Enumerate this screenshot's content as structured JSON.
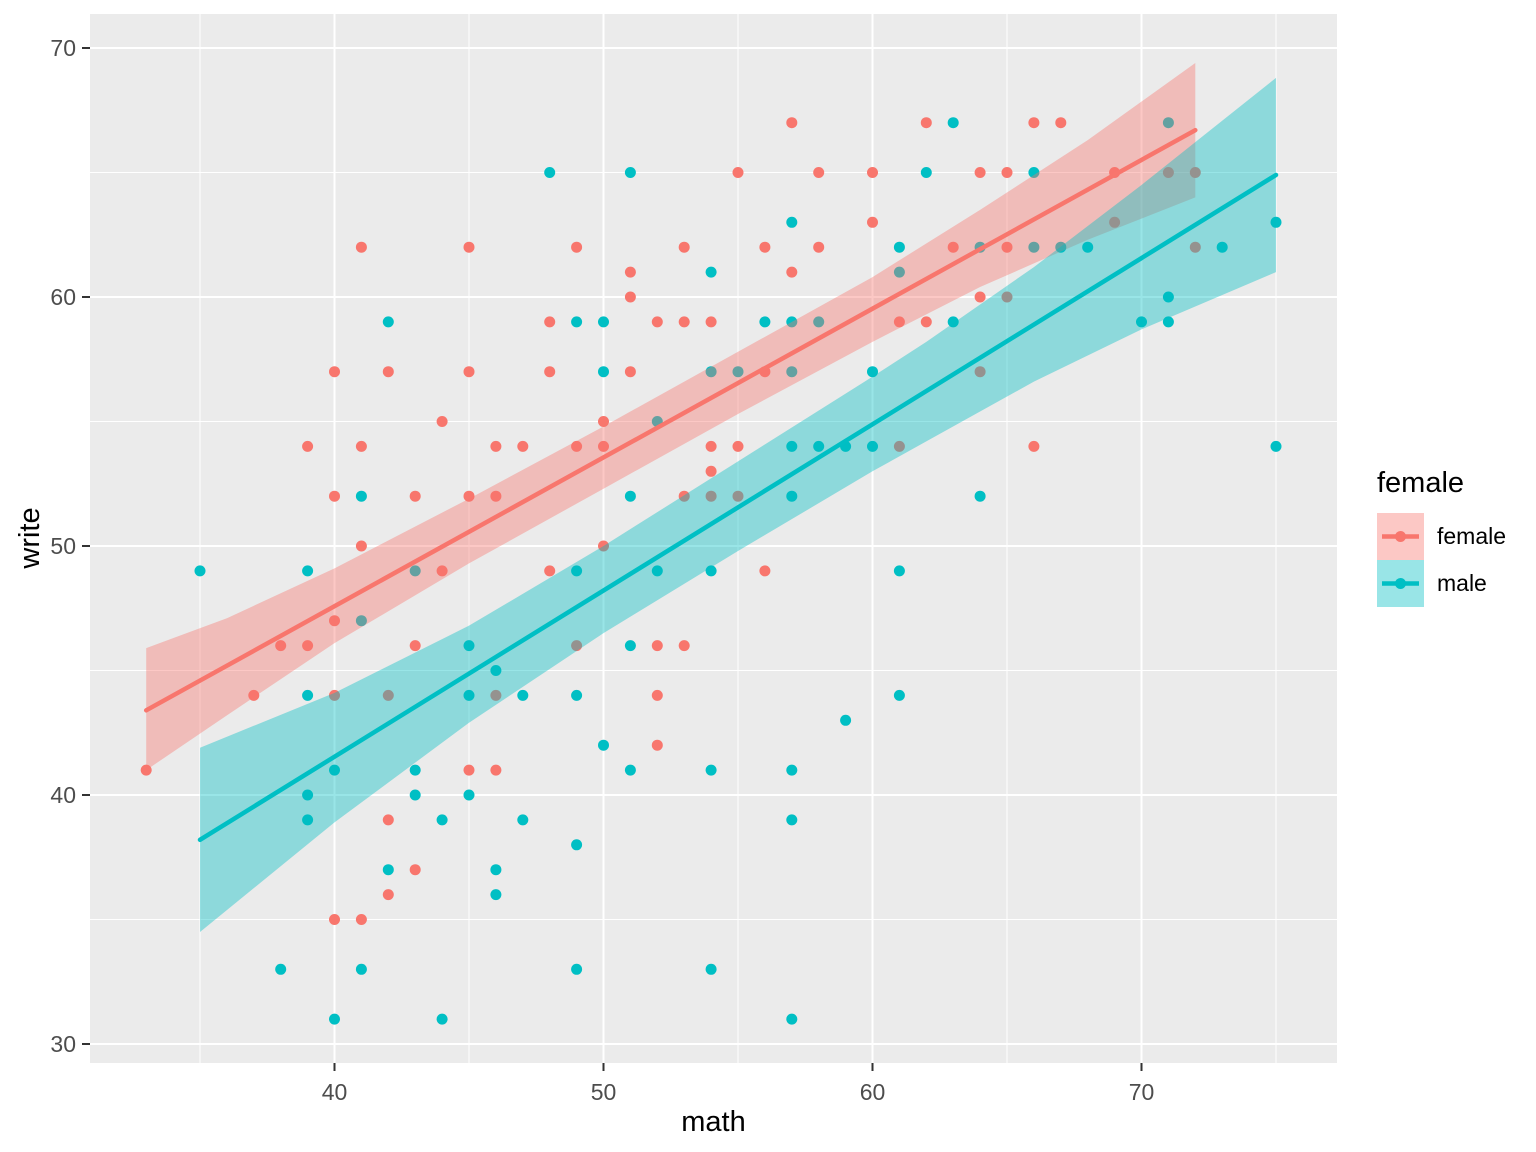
{
  "chart_data": {
    "type": "scatter",
    "title": "",
    "xlabel": "math",
    "ylabel": "write",
    "xlim": [
      30.9,
      77.2
    ],
    "ylim": [
      29.2,
      71.3
    ],
    "x_major_ticks": [
      40,
      50,
      60,
      70
    ],
    "x_minor_gridlines": [
      35,
      45,
      55,
      65,
      75
    ],
    "y_major_ticks": [
      30,
      40,
      50,
      60,
      70
    ],
    "y_minor_gridlines": [
      35,
      45,
      55,
      65
    ],
    "grid": "on",
    "panel_background": "#EBEBEB",
    "gridline_color": "#FFFFFF",
    "tick_label_color": "#4D4D4D",
    "legend": {
      "title": "female",
      "position": "right",
      "entries": [
        {
          "label": "female",
          "color": "#F8766D"
        },
        {
          "label": "male",
          "color": "#00BFC4"
        }
      ]
    },
    "series": [
      {
        "name": "female",
        "color": "#F8766D",
        "marker": "circle",
        "points": [
          [
            33,
            41
          ],
          [
            37,
            44
          ],
          [
            38,
            46
          ],
          [
            39,
            46
          ],
          [
            39,
            54
          ],
          [
            40,
            35
          ],
          [
            40,
            44
          ],
          [
            40,
            47
          ],
          [
            40,
            52
          ],
          [
            40,
            57
          ],
          [
            41,
            35
          ],
          [
            41,
            50
          ],
          [
            41,
            54
          ],
          [
            41,
            62
          ],
          [
            42,
            36
          ],
          [
            42,
            39
          ],
          [
            42,
            44
          ],
          [
            42,
            57
          ],
          [
            43,
            37
          ],
          [
            43,
            46
          ],
          [
            43,
            52
          ],
          [
            44,
            49
          ],
          [
            44,
            55
          ],
          [
            45,
            41
          ],
          [
            45,
            52
          ],
          [
            45,
            57
          ],
          [
            45,
            62
          ],
          [
            46,
            41
          ],
          [
            46,
            44
          ],
          [
            46,
            52
          ],
          [
            46,
            54
          ],
          [
            47,
            54
          ],
          [
            48,
            49
          ],
          [
            48,
            57
          ],
          [
            48,
            59
          ],
          [
            49,
            46
          ],
          [
            49,
            54
          ],
          [
            49,
            62
          ],
          [
            50,
            50
          ],
          [
            50,
            54
          ],
          [
            50,
            55
          ],
          [
            51,
            57
          ],
          [
            51,
            60
          ],
          [
            51,
            61
          ],
          [
            52,
            42
          ],
          [
            52,
            44
          ],
          [
            52,
            46
          ],
          [
            52,
            59
          ],
          [
            53,
            46
          ],
          [
            53,
            52
          ],
          [
            53,
            59
          ],
          [
            53,
            62
          ],
          [
            54,
            52
          ],
          [
            54,
            53
          ],
          [
            54,
            54
          ],
          [
            54,
            59
          ],
          [
            55,
            52
          ],
          [
            55,
            54
          ],
          [
            55,
            65
          ],
          [
            56,
            49
          ],
          [
            56,
            57
          ],
          [
            56,
            62
          ],
          [
            57,
            61
          ],
          [
            57,
            67
          ],
          [
            58,
            62
          ],
          [
            58,
            65
          ],
          [
            60,
            63
          ],
          [
            60,
            65
          ],
          [
            61,
            54
          ],
          [
            61,
            59
          ],
          [
            62,
            59
          ],
          [
            62,
            67
          ],
          [
            63,
            62
          ],
          [
            64,
            57
          ],
          [
            64,
            60
          ],
          [
            64,
            65
          ],
          [
            65,
            60
          ],
          [
            65,
            62
          ],
          [
            65,
            65
          ],
          [
            66,
            54
          ],
          [
            66,
            67
          ],
          [
            67,
            67
          ],
          [
            69,
            63
          ],
          [
            69,
            65
          ],
          [
            71,
            65
          ],
          [
            72,
            62
          ],
          [
            72,
            65
          ]
        ],
        "regression_line": {
          "x": [
            33,
            72
          ],
          "y": [
            43.4,
            66.7
          ]
        },
        "ribbon": {
          "x": [
            33,
            36,
            40,
            45,
            50,
            55,
            60,
            64,
            68,
            72
          ],
          "upper": [
            45.9,
            47.1,
            49.1,
            51.9,
            54.8,
            57.8,
            60.8,
            63.5,
            66.3,
            69.4
          ],
          "lower": [
            41.0,
            43.2,
            46.1,
            49.3,
            52.3,
            55.3,
            58.2,
            60.4,
            62.3,
            64.0
          ]
        }
      },
      {
        "name": "male",
        "color": "#00BFC4",
        "marker": "circle",
        "points": [
          [
            35,
            49
          ],
          [
            38,
            33
          ],
          [
            39,
            39
          ],
          [
            39,
            40
          ],
          [
            39,
            44
          ],
          [
            39,
            49
          ],
          [
            40,
            31
          ],
          [
            40,
            41
          ],
          [
            41,
            33
          ],
          [
            41,
            47
          ],
          [
            41,
            52
          ],
          [
            42,
            37
          ],
          [
            42,
            59
          ],
          [
            43,
            40
          ],
          [
            43,
            41
          ],
          [
            43,
            49
          ],
          [
            44,
            31
          ],
          [
            44,
            39
          ],
          [
            45,
            40
          ],
          [
            45,
            44
          ],
          [
            45,
            46
          ],
          [
            46,
            36
          ],
          [
            46,
            37
          ],
          [
            46,
            45
          ],
          [
            47,
            39
          ],
          [
            47,
            44
          ],
          [
            48,
            65
          ],
          [
            49,
            33
          ],
          [
            49,
            38
          ],
          [
            49,
            44
          ],
          [
            49,
            49
          ],
          [
            49,
            59
          ],
          [
            50,
            42
          ],
          [
            50,
            57
          ],
          [
            50,
            59
          ],
          [
            51,
            41
          ],
          [
            51,
            46
          ],
          [
            51,
            52
          ],
          [
            51,
            65
          ],
          [
            52,
            49
          ],
          [
            52,
            55
          ],
          [
            54,
            33
          ],
          [
            54,
            41
          ],
          [
            54,
            49
          ],
          [
            54,
            57
          ],
          [
            54,
            61
          ],
          [
            55,
            57
          ],
          [
            56,
            59
          ],
          [
            57,
            31
          ],
          [
            57,
            39
          ],
          [
            57,
            41
          ],
          [
            57,
            52
          ],
          [
            57,
            54
          ],
          [
            57,
            57
          ],
          [
            57,
            59
          ],
          [
            57,
            63
          ],
          [
            58,
            54
          ],
          [
            58,
            59
          ],
          [
            59,
            43
          ],
          [
            59,
            54
          ],
          [
            60,
            54
          ],
          [
            60,
            57
          ],
          [
            61,
            44
          ],
          [
            61,
            49
          ],
          [
            61,
            61
          ],
          [
            61,
            62
          ],
          [
            62,
            65
          ],
          [
            63,
            59
          ],
          [
            63,
            67
          ],
          [
            64,
            52
          ],
          [
            64,
            62
          ],
          [
            66,
            62
          ],
          [
            66,
            65
          ],
          [
            67,
            62
          ],
          [
            68,
            62
          ],
          [
            70,
            59
          ],
          [
            71,
            59
          ],
          [
            71,
            60
          ],
          [
            71,
            67
          ],
          [
            73,
            62
          ],
          [
            75,
            54
          ],
          [
            75,
            63
          ]
        ],
        "regression_line": {
          "x": [
            35,
            75
          ],
          "y": [
            38.2,
            64.9
          ]
        },
        "ribbon": {
          "x": [
            35,
            40,
            45,
            50,
            55,
            60,
            62,
            66,
            70,
            75
          ],
          "upper": [
            41.9,
            44.1,
            46.8,
            50.0,
            53.4,
            56.8,
            58.2,
            61.2,
            64.5,
            68.8
          ],
          "lower": [
            34.5,
            38.9,
            42.9,
            46.5,
            49.8,
            53.0,
            54.2,
            56.6,
            58.7,
            61.0
          ]
        }
      }
    ]
  }
}
